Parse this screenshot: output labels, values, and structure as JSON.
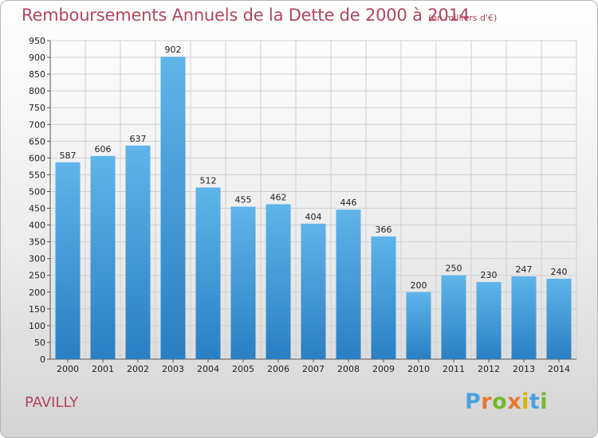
{
  "header": {
    "title": "Remboursements Annuels de la Dette de 2000 à 2014",
    "subtitle": "(en milliers d'€)"
  },
  "footer": {
    "commune": "PAVILLY",
    "logo": {
      "letters": [
        "P",
        "r",
        "o",
        "x",
        "i",
        "t",
        "i"
      ],
      "colors": [
        "#4aa3df",
        "#e8772e",
        "#76b82a",
        "#e8772e",
        "#d8b400",
        "#4aa3df",
        "#76b82a"
      ]
    }
  },
  "chart_data": {
    "type": "bar",
    "title": "Remboursements Annuels de la Dette de 2000 à 2014",
    "subtitle": "(en milliers d'€)",
    "categories": [
      "2000",
      "2001",
      "2002",
      "2003",
      "2004",
      "2005",
      "2006",
      "2007",
      "2008",
      "2009",
      "2010",
      "2011",
      "2012",
      "2013",
      "2014"
    ],
    "values": [
      587,
      606,
      637,
      902,
      512,
      455,
      462,
      404,
      446,
      366,
      200,
      250,
      230,
      247,
      240
    ],
    "ylim": [
      0,
      950
    ],
    "yticks": [
      0,
      50,
      100,
      150,
      200,
      250,
      300,
      350,
      400,
      450,
      500,
      550,
      600,
      650,
      700,
      750,
      800,
      850,
      900,
      950
    ],
    "grid": true,
    "bar_color_light": "#5fb4ea",
    "bar_color_dark": "#2a7fc3",
    "xlabel": "",
    "ylabel": ""
  }
}
